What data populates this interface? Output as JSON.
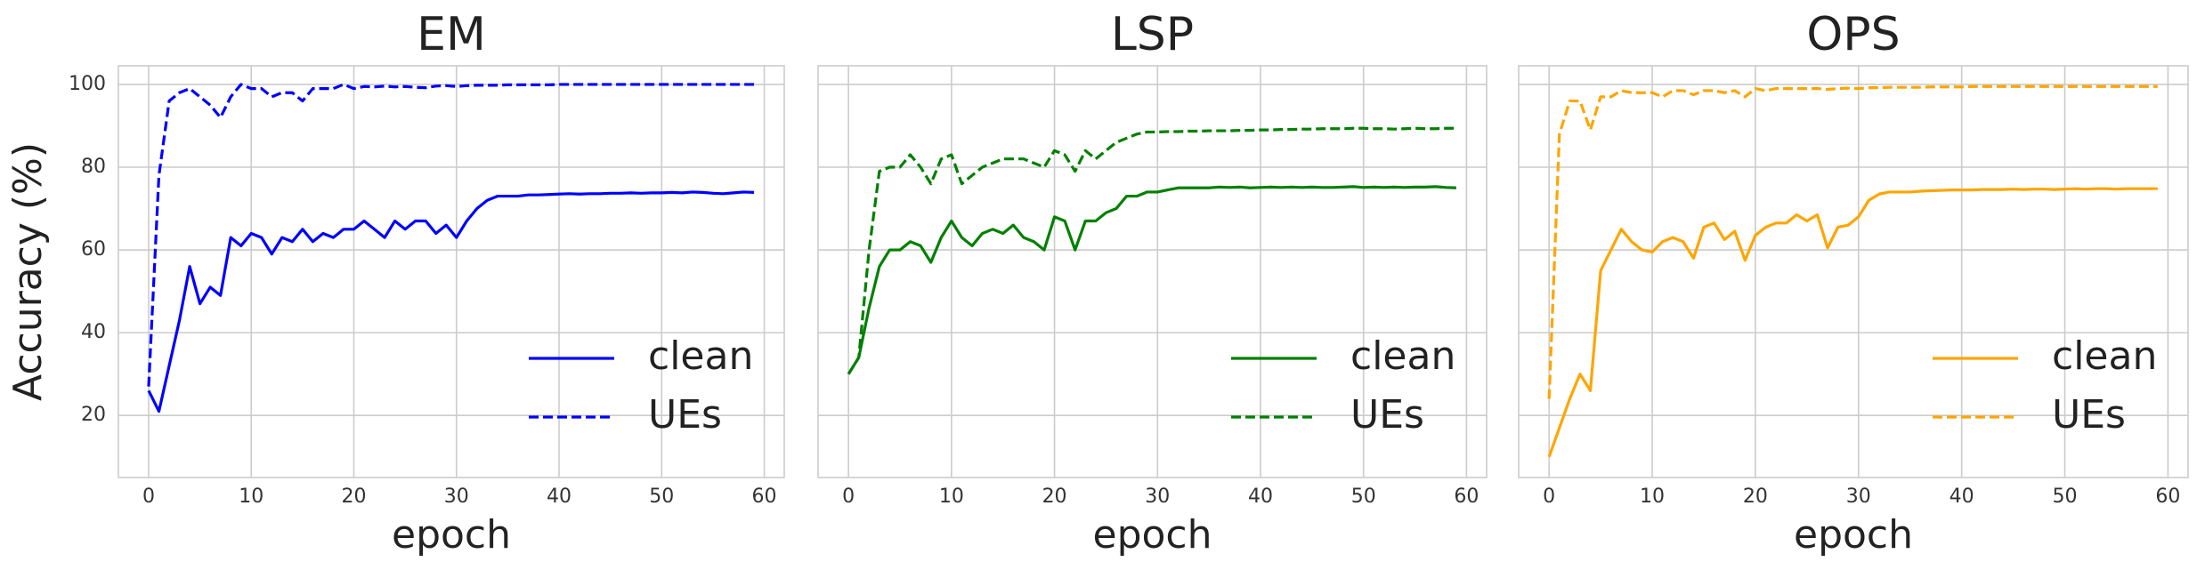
{
  "chart_data": [
    {
      "type": "line",
      "title": "EM",
      "xlabel": "epoch",
      "ylabel": "Accuracy (%)",
      "x": [
        0,
        1,
        2,
        3,
        4,
        5,
        6,
        7,
        8,
        9,
        10,
        11,
        12,
        13,
        14,
        15,
        16,
        17,
        18,
        19,
        20,
        21,
        22,
        23,
        24,
        25,
        26,
        27,
        28,
        29,
        30,
        31,
        32,
        33,
        34,
        35,
        36,
        37,
        38,
        39,
        40,
        41,
        42,
        43,
        44,
        45,
        46,
        47,
        48,
        49,
        50,
        51,
        52,
        53,
        54,
        55,
        56,
        57,
        58,
        59
      ],
      "xlim": [
        -2.95,
        61.95
      ],
      "xticks": [
        0,
        10,
        20,
        30,
        40,
        50,
        60
      ],
      "ylim": [
        5,
        104.5
      ],
      "yticks": [
        20,
        40,
        60,
        80,
        100
      ],
      "grid": true,
      "legend": "lower right",
      "series": [
        {
          "name": "clean",
          "color": "#0000ff",
          "linestyle": "solid",
          "values": [
            26,
            21,
            32,
            43,
            56,
            47,
            51,
            49,
            63,
            61,
            64,
            63,
            59,
            63,
            62,
            65,
            62,
            64,
            63,
            65,
            65,
            67,
            65,
            63,
            67,
            65,
            67,
            67,
            64,
            66,
            63,
            67,
            70,
            72,
            73,
            73,
            73,
            73.3,
            73.3,
            73.4,
            73.5,
            73.6,
            73.5,
            73.6,
            73.6,
            73.7,
            73.7,
            73.8,
            73.7,
            73.8,
            73.8,
            73.9,
            73.8,
            74,
            73.9,
            73.7,
            73.6,
            73.8,
            74,
            73.9
          ]
        },
        {
          "name": "UEs",
          "color": "#0000ff",
          "linestyle": "dashed",
          "values": [
            27,
            78,
            96,
            98,
            99,
            97,
            95,
            92,
            97,
            100,
            99,
            99,
            97,
            98,
            98,
            96,
            99,
            99,
            99,
            100,
            99,
            99.5,
            99.4,
            99.6,
            99.4,
            99.5,
            99.3,
            99.2,
            99.6,
            99.7,
            99.5,
            99.7,
            99.8,
            99.8,
            99.8,
            99.9,
            99.9,
            99.9,
            99.9,
            99.9,
            100,
            100,
            100,
            100,
            100,
            100,
            100,
            100,
            100,
            100,
            100,
            100,
            100,
            100,
            100,
            100,
            100,
            100,
            100,
            100
          ]
        }
      ]
    },
    {
      "type": "line",
      "title": "LSP",
      "xlabel": "epoch",
      "x": [
        0,
        1,
        2,
        3,
        4,
        5,
        6,
        7,
        8,
        9,
        10,
        11,
        12,
        13,
        14,
        15,
        16,
        17,
        18,
        19,
        20,
        21,
        22,
        23,
        24,
        25,
        26,
        27,
        28,
        29,
        30,
        31,
        32,
        33,
        34,
        35,
        36,
        37,
        38,
        39,
        40,
        41,
        42,
        43,
        44,
        45,
        46,
        47,
        48,
        49,
        50,
        51,
        52,
        53,
        54,
        55,
        56,
        57,
        58,
        59
      ],
      "xlim": [
        -2.95,
        61.95
      ],
      "xticks": [
        0,
        10,
        20,
        30,
        40,
        50,
        60
      ],
      "sharey": true,
      "grid": true,
      "legend": "lower right",
      "series": [
        {
          "name": "clean",
          "color": "#008000",
          "linestyle": "solid",
          "values": [
            30,
            34,
            46,
            56,
            60,
            60,
            62,
            61,
            57,
            63,
            67,
            63,
            61,
            64,
            65,
            64,
            66,
            63,
            62,
            60,
            68,
            67,
            60,
            67,
            67,
            69,
            70,
            73,
            73,
            74,
            74,
            74.5,
            75,
            75,
            75,
            75,
            75.2,
            75.1,
            75.2,
            75,
            75.1,
            75.2,
            75.1,
            75.2,
            75.1,
            75.2,
            75.1,
            75.1,
            75.2,
            75.3,
            75.1,
            75.2,
            75.1,
            75.2,
            75.1,
            75.2,
            75.2,
            75.3,
            75.1,
            75
          ]
        },
        {
          "name": "UEs",
          "color": "#008000",
          "linestyle": "dashed",
          "values": [
            30,
            34,
            60,
            79,
            80,
            80,
            83,
            80,
            76,
            82,
            83,
            76,
            78,
            80,
            81,
            82,
            82,
            82,
            81,
            80,
            84,
            83,
            79,
            84,
            82,
            84,
            86,
            87,
            88,
            88.5,
            88.5,
            88.6,
            88.6,
            88.7,
            88.7,
            88.8,
            88.8,
            88.8,
            88.9,
            88.9,
            89,
            89,
            89.1,
            89.1,
            89.2,
            89.2,
            89.3,
            89.3,
            89.3,
            89.4,
            89.4,
            89.3,
            89.3,
            89.2,
            89.3,
            89.4,
            89.3,
            89.3,
            89.4,
            89.4
          ]
        }
      ]
    },
    {
      "type": "line",
      "title": "OPS",
      "xlabel": "epoch",
      "x": [
        0,
        1,
        2,
        3,
        4,
        5,
        6,
        7,
        8,
        9,
        10,
        11,
        12,
        13,
        14,
        15,
        16,
        17,
        18,
        19,
        20,
        21,
        22,
        23,
        24,
        25,
        26,
        27,
        28,
        29,
        30,
        31,
        32,
        33,
        34,
        35,
        36,
        37,
        38,
        39,
        40,
        41,
        42,
        43,
        44,
        45,
        46,
        47,
        48,
        49,
        50,
        51,
        52,
        53,
        54,
        55,
        56,
        57,
        58,
        59
      ],
      "xlim": [
        -2.95,
        61.95
      ],
      "xticks": [
        0,
        10,
        20,
        30,
        40,
        50,
        60
      ],
      "sharey": true,
      "grid": true,
      "legend": "lower right",
      "series": [
        {
          "name": "clean",
          "color": "#ffa500",
          "linestyle": "solid",
          "values": [
            10,
            17,
            24,
            30,
            26,
            55,
            60,
            65,
            62,
            60,
            59.5,
            62,
            63,
            62,
            58,
            65.5,
            66.5,
            62.5,
            64.5,
            57.5,
            63.5,
            65.5,
            66.5,
            66.5,
            68.5,
            67,
            68.5,
            60.5,
            65.5,
            66,
            68,
            72,
            73.5,
            74,
            74,
            74,
            74.2,
            74.3,
            74.4,
            74.5,
            74.5,
            74.5,
            74.6,
            74.6,
            74.6,
            74.7,
            74.6,
            74.7,
            74.7,
            74.6,
            74.7,
            74.8,
            74.7,
            74.8,
            74.8,
            74.7,
            74.8,
            74.8,
            74.8,
            74.8
          ]
        },
        {
          "name": "UEs",
          "color": "#ffa500",
          "linestyle": "dashed",
          "values": [
            24,
            88,
            96,
            96,
            89,
            97,
            97,
            98.5,
            98,
            98,
            98,
            97,
            98.5,
            98.5,
            97.5,
            98.5,
            98.5,
            98,
            98.5,
            97,
            99,
            98.5,
            99,
            99,
            99,
            99,
            99,
            98.8,
            99,
            99.1,
            99,
            99.2,
            99.2,
            99.3,
            99.3,
            99.3,
            99.3,
            99.4,
            99.4,
            99.4,
            99.4,
            99.5,
            99.5,
            99.5,
            99.5,
            99.5,
            99.5,
            99.5,
            99.5,
            99.5,
            99.5,
            99.5,
            99.5,
            99.5,
            99.5,
            99.5,
            99.5,
            99.5,
            99.5,
            99.5
          ]
        }
      ]
    }
  ]
}
